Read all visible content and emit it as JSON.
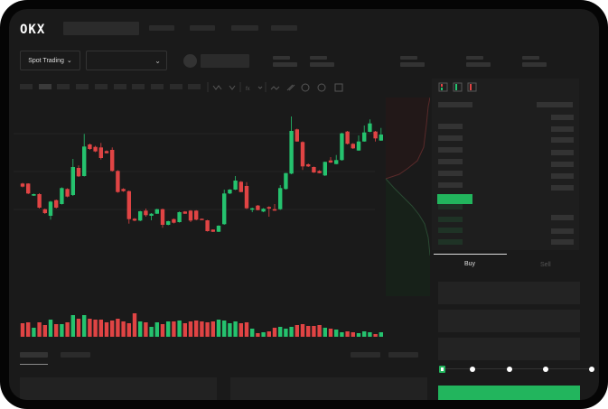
{
  "header": {
    "logo": "OKX"
  },
  "toolbar": {
    "spot_trading_label": "Spot Trading",
    "chevron": "⌄"
  },
  "trade_panel": {
    "buy_tab": "Buy",
    "sell_tab": "Sell",
    "slider_value_percent": 0
  },
  "colors": {
    "up": "#25c26e",
    "down": "#e04444",
    "buy_button": "#22b55d",
    "background": "#1a1a1a"
  },
  "chart_data": {
    "type": "candlestick",
    "candles": [
      [
        66.7,
        67.5,
        62.5,
        63.3
      ],
      [
        66.7,
        67,
        55,
        55.7
      ],
      [
        53.3,
        55.5,
        53,
        55
      ],
      [
        55,
        56,
        39,
        40
      ],
      [
        38.3,
        39,
        33,
        34
      ],
      [
        31,
        47.5,
        26.7,
        46.7
      ],
      [
        48.3,
        49,
        39,
        40
      ],
      [
        44,
        62.5,
        43.5,
        61.7
      ],
      [
        60.7,
        61.5,
        51.5,
        52.3
      ],
      [
        54,
        94,
        53,
        85
      ],
      [
        84,
        86.7,
        74,
        74.7
      ],
      [
        75,
        121.7,
        74.5,
        107.7
      ],
      [
        110,
        111,
        104,
        105
      ],
      [
        107.3,
        108.5,
        101.5,
        102.3
      ],
      [
        106.7,
        111.7,
        93.3,
        95
      ],
      [
        102.7,
        103.5,
        100,
        100.3
      ],
      [
        104,
        106.7,
        80,
        80.7
      ],
      [
        80.7,
        81.5,
        56.5,
        57.3
      ],
      [
        60.7,
        61.5,
        57.5,
        58.3
      ],
      [
        58.3,
        59,
        22.3,
        27.3
      ],
      [
        27.7,
        28.5,
        25,
        25.7
      ],
      [
        25.7,
        36.5,
        25,
        36
      ],
      [
        36.7,
        39,
        30,
        31.7
      ],
      [
        31,
        34,
        26,
        33.3
      ],
      [
        33.3,
        38.8,
        33,
        38.3
      ],
      [
        38.3,
        39,
        17.7,
        21
      ],
      [
        21,
        25.5,
        20.5,
        25
      ],
      [
        27.3,
        28,
        22.5,
        23.3
      ],
      [
        24,
        35.7,
        23.5,
        35
      ],
      [
        35.7,
        36.2,
        33,
        33.3
      ],
      [
        36.7,
        37.2,
        24,
        25.7
      ],
      [
        36.7,
        37.2,
        26,
        26.7
      ],
      [
        27.7,
        28,
        26.5,
        26.7
      ],
      [
        26,
        26.5,
        13.5,
        14
      ],
      [
        15.7,
        16,
        13,
        13.3
      ],
      [
        13.3,
        20.5,
        13,
        20
      ],
      [
        21.7,
        60,
        21,
        55.7
      ],
      [
        55.7,
        60.5,
        55,
        60
      ],
      [
        60,
        75,
        59.5,
        70
      ],
      [
        68.7,
        69.5,
        57,
        57.3
      ],
      [
        64,
        68.3,
        38.5,
        39.3
      ],
      [
        37.7,
        40,
        35,
        39.3
      ],
      [
        42.3,
        43,
        37,
        37.3
      ],
      [
        35.7,
        39.5,
        35,
        38.8
      ],
      [
        40.7,
        41.5,
        30,
        39
      ],
      [
        38.3,
        44,
        36.5,
        36.7
      ],
      [
        38.3,
        65,
        37.5,
        61.7
      ],
      [
        60.7,
        78.5,
        60,
        78.3
      ],
      [
        77.7,
        141,
        77,
        125
      ],
      [
        126.7,
        127.5,
        113,
        113.3
      ],
      [
        112.7,
        113.5,
        81.7,
        85.7
      ],
      [
        88,
        89,
        85,
        85.7
      ],
      [
        85,
        85.5,
        78.5,
        79
      ],
      [
        80.7,
        81.5,
        78,
        78.3
      ],
      [
        75.7,
        91,
        75,
        90.7
      ],
      [
        92.3,
        96,
        89.5,
        90
      ],
      [
        88.3,
        98.3,
        88,
        92.7
      ],
      [
        92.7,
        123,
        92,
        122.3
      ],
      [
        124.3,
        125,
        110,
        110.7
      ],
      [
        110.7,
        111.5,
        105,
        105.7
      ],
      [
        103.3,
        120,
        103,
        113.3
      ],
      [
        113.3,
        131,
        113,
        123.3
      ],
      [
        124,
        137.7,
        123.5,
        133.3
      ],
      [
        124.3,
        125,
        113.3,
        116.7
      ],
      [
        114.3,
        128.3,
        114,
        121
      ]
    ],
    "volume": [
      15,
      16,
      10,
      16,
      13,
      19,
      14,
      14,
      16,
      24,
      20,
      24,
      20,
      19,
      19,
      16,
      18,
      20,
      17,
      15,
      26,
      17,
      16,
      11,
      16,
      14,
      17,
      17,
      18,
      15,
      17,
      18,
      17,
      16,
      17,
      19,
      18,
      15,
      17,
      15,
      16,
      9,
      4,
      5,
      6,
      10,
      11,
      9,
      11,
      13,
      14,
      12,
      12,
      13,
      10,
      9,
      8,
      5,
      6,
      5,
      4,
      6,
      5,
      3,
      5
    ],
    "grid": true
  }
}
